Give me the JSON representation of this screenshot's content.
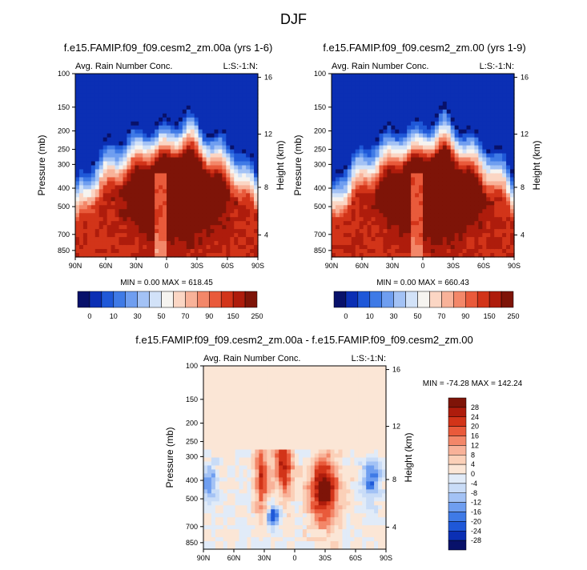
{
  "title": "DJF",
  "field_label": "Avg. Rain Number Conc.",
  "level_label": "L:S:-1:N:",
  "colors": {
    "abs_scale": [
      "#08116a",
      "#0b2fb4",
      "#1f58d8",
      "#3f7ae6",
      "#6f9ef0",
      "#a3c2f5",
      "#d2e2f8",
      "#f6f4f0",
      "#fbd6c4",
      "#f8b299",
      "#f38769",
      "#e95a3b",
      "#d23419",
      "#ae1c0c",
      "#7e1408"
    ],
    "diff_scale": [
      "#08116a",
      "#0b2fb4",
      "#1f58d8",
      "#3f7ae6",
      "#6f9ef0",
      "#a3c2f5",
      "#c9dcf7",
      "#e1ebf8",
      "#fbe6d6",
      "#fbd0b8",
      "#f8b299",
      "#f38769",
      "#e95a3b",
      "#d23419",
      "#ae1c0c",
      "#7e1408"
    ]
  },
  "chart_data": [
    {
      "type": "heatmap",
      "title": "f.e15.FAMIP.f09_f09.cesm2_zm.00a (yrs 1-6)",
      "subtitle_left": "Avg. Rain Number Conc.",
      "subtitle_right": "L:S:-1:N:",
      "ylabel": "Pressure (mb)",
      "y2label": "Height (km)",
      "x_ticks": [
        "90N",
        "60N",
        "30N",
        "0",
        "30S",
        "60S",
        "90S"
      ],
      "y_ticks": [
        "100",
        "150",
        "200",
        "250",
        "300",
        "400",
        "500",
        "700",
        "850"
      ],
      "y2_ticks": [
        "16",
        "12",
        "8",
        "4"
      ],
      "stats": "MIN =   0.00   MAX = 618.45",
      "min": 0.0,
      "max": 618.45,
      "colorbar_levels": [
        "0",
        "10",
        "30",
        "50",
        "70",
        "90",
        "150",
        "250"
      ]
    },
    {
      "type": "heatmap",
      "title": "f.e15.FAMIP.f09_f09.cesm2_zm.00 (yrs 1-9)",
      "subtitle_left": "Avg. Rain Number Conc.",
      "subtitle_right": "L:S:-1:N:",
      "ylabel": "Pressure (mb)",
      "y2label": "Height (km)",
      "x_ticks": [
        "90N",
        "60N",
        "30N",
        "0",
        "30S",
        "60S",
        "90S"
      ],
      "y_ticks": [
        "100",
        "150",
        "200",
        "250",
        "300",
        "400",
        "500",
        "700",
        "850"
      ],
      "y2_ticks": [
        "16",
        "12",
        "8",
        "4"
      ],
      "stats": "MIN =   0.00   MAX = 660.43",
      "min": 0.0,
      "max": 660.43,
      "colorbar_levels": [
        "0",
        "10",
        "30",
        "50",
        "70",
        "90",
        "150",
        "250"
      ]
    },
    {
      "type": "heatmap",
      "title": "f.e15.FAMIP.f09_f09.cesm2_zm.00a - f.e15.FAMIP.f09_f09.cesm2_zm.00",
      "subtitle_left": "Avg. Rain Number Conc.",
      "subtitle_right": "L:S:-1:N:",
      "ylabel": "Pressure (mb)",
      "y2label": "Height (km)",
      "x_ticks": [
        "90N",
        "60N",
        "30N",
        "0",
        "30S",
        "60S",
        "90S"
      ],
      "y_ticks": [
        "100",
        "150",
        "200",
        "250",
        "300",
        "400",
        "500",
        "700",
        "850"
      ],
      "y2_ticks": [
        "16",
        "12",
        "8",
        "4"
      ],
      "stats": "MIN = -74.28   MAX = 142.24",
      "min": -74.28,
      "max": 142.24,
      "colorbar_levels": [
        "28",
        "24",
        "20",
        "16",
        "12",
        "8",
        "4",
        "0",
        "-4",
        "-8",
        "-12",
        "-16",
        "-20",
        "-24",
        "-28"
      ]
    }
  ]
}
